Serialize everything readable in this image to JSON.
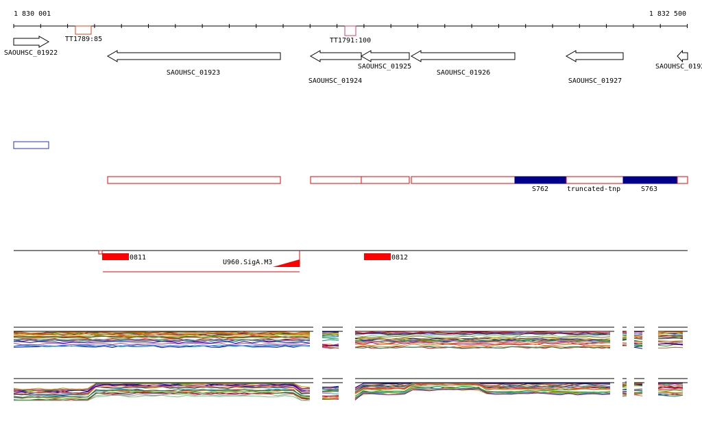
{
  "ruler": {
    "start": "1 830 001",
    "end": "1 832 500"
  },
  "terminators": [
    "TT1789:85",
    "TT1791:100"
  ],
  "genes": [
    "SAOUHSC_01922",
    "SAOUHSC_01923",
    "SAOUHSC_01924",
    "SAOUHSC_01925",
    "SAOUHSC_01926",
    "SAOUHSC_01927",
    "SAOUHSC_0192"
  ],
  "features": [
    "S762",
    "truncated-tnp",
    "S763"
  ],
  "regulators": [
    "0811",
    "U960.SigA.M3",
    "0812"
  ]
}
